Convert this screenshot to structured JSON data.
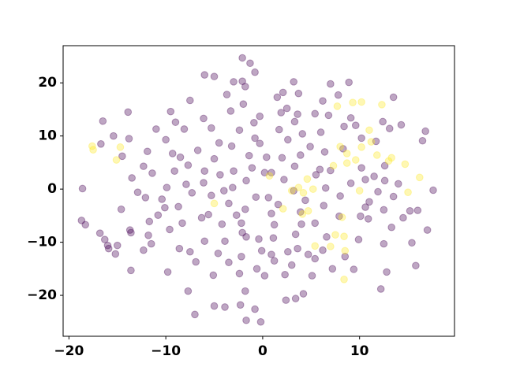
{
  "chart_data": {
    "type": "scatter",
    "xlim": [
      -20.6,
      19.8
    ],
    "ylim": [
      -27.7,
      27.0
    ],
    "xticks": [
      {
        "value": -20,
        "label": "−20"
      },
      {
        "value": -10,
        "label": "−10"
      },
      0,
      10
    ],
    "yticks": [
      {
        "value": -20,
        "label": "−20"
      },
      {
        "value": -10,
        "label": "−10"
      },
      0,
      10,
      20
    ],
    "grid": false,
    "alpha": 0.35,
    "series": [
      {
        "color": "#440154",
        "x": [
          -18.6,
          -18.7,
          -18.3,
          -16.3,
          -16.0,
          -15.9,
          -15.0,
          -15.2,
          -14.6,
          -15.4,
          -16.5,
          -16.7,
          -13.8,
          -13.9,
          -13.7,
          -13.6,
          -13.6,
          -12.3,
          -11.5,
          -11.7,
          -10.8,
          -12.3,
          -11.9,
          -11.0,
          -11.4,
          -10.0,
          -9.5,
          -9.0,
          -8.1,
          -9.3,
          -8.5,
          -7.7,
          -7.9,
          -7.3,
          -8.7,
          -8.3,
          -9.6,
          -9.8,
          -7.5,
          -7.7,
          -7.0,
          -6.9,
          -6.0,
          -5.6,
          -5.3,
          -6.1,
          -6.0,
          -5.0,
          -4.5,
          -5.3,
          -6.1,
          -6.0,
          -5.0,
          -3.7,
          -3.3,
          -2.4,
          -3.2,
          -3.0,
          -3.1,
          -3.5,
          -4.2,
          -3.9,
          -4.6,
          -5.1,
          -5.0,
          -3.9,
          -2.3,
          -1.7,
          -1.8,
          -2.4,
          -2.2,
          -1.7,
          -2.2,
          -1.8,
          -0.7,
          -1.7,
          -1.4,
          -0.8,
          -0.9,
          -2.0,
          -1.8,
          -2.1,
          -2.1,
          -1.3,
          -0.8,
          -0.3,
          -0.3,
          0.4,
          0.9,
          0.6,
          0.9,
          1.1,
          0.9,
          0.2,
          -0.6,
          -0.4,
          -0.8,
          -0.2,
          1.2,
          1.6,
          2.2,
          2.0,
          2.6,
          1.7,
          1.9,
          2.5,
          1.5,
          2.1,
          3.2,
          3.7,
          3.6,
          3.3,
          4.1,
          3.9,
          3.3,
          3.2,
          4.4,
          4.0,
          3.4,
          3.6,
          3.0,
          2.3,
          2.4,
          3.4,
          4.2,
          5.1,
          5.4,
          6.2,
          6.6,
          5.4,
          6.3,
          6.5,
          5.9,
          6.4,
          6.0,
          6.8,
          5.4,
          6.2,
          7.0,
          7.8,
          9.1,
          8.9,
          10.2,
          9.6,
          10.2,
          9.1,
          8.0,
          7.9,
          8.5,
          9.4,
          10.6,
          10.1,
          11.0,
          11.9,
          12.6,
          12.5,
          13.3,
          13.5,
          14.5,
          15.4,
          15.8,
          15.2,
          16.0,
          17.0,
          17.6,
          16.5,
          16.8,
          14.3,
          13.5,
          13.1,
          12.4,
          12.6,
          12.5,
          12.8,
          12.2,
          10.9,
          9.9,
          7.2,
          4.7,
          2.6,
          7.0,
          8.3,
          11.5,
          14.0,
          10.6,
          -12.9,
          -12.1,
          -10.4,
          -10.1,
          -9.9,
          -13.5,
          -14.5,
          -11.8,
          -8.6,
          -4.0,
          -4.4,
          -2.7,
          -0.1,
          1.2,
          -3.5,
          -2.1,
          3.9,
          -6.3,
          -6.7,
          -7.5,
          -3.0,
          0.2,
          -1.1,
          4.9,
          5.5,
          8.4,
          11.7,
          -16.8,
          -9.1
        ],
        "values": [
          0.1,
          -5.9,
          -6.7,
          -9.5,
          -10.6,
          -11.2,
          -10.6,
          -12.2,
          -3.8,
          10.0,
          12.8,
          8.5,
          9.5,
          14.5,
          -7.7,
          -8.2,
          -15.3,
          -11.5,
          -10.3,
          -6.1,
          -4.9,
          4.3,
          7.1,
          11.3,
          3.0,
          9.3,
          14.6,
          12.6,
          11.3,
          6.7,
          6.0,
          4.5,
          0.9,
          -0.7,
          -3.3,
          -6.4,
          -7.6,
          -15.6,
          -11.8,
          -19.2,
          -23.6,
          -13.7,
          -9.8,
          -4.8,
          -1.2,
          1.2,
          3.4,
          5.7,
          8.7,
          11.5,
          13.3,
          21.5,
          21.2,
          17.8,
          14.7,
          11.1,
          8.1,
          3.4,
          0.3,
          -2.7,
          -6.6,
          -9.8,
          -12.1,
          -16.2,
          -22.0,
          -22.2,
          -21.8,
          -24.7,
          -19.2,
          -15.9,
          -12.7,
          -9.0,
          -6.4,
          -3.8,
          -1.5,
          1.6,
          6.3,
          9.6,
          12.5,
          16.0,
          19.3,
          20.3,
          24.7,
          23.7,
          22.0,
          13.7,
          8.6,
          6.0,
          3.1,
          -1.6,
          -4.6,
          -9.2,
          -12.3,
          -16.3,
          -15.0,
          -9.4,
          -22.6,
          -25.0,
          -6.7,
          -2.9,
          1.8,
          5.9,
          9.3,
          11.2,
          14.4,
          15.2,
          17.3,
          18.2,
          20.2,
          18.0,
          14.1,
          12.7,
          10.4,
          6.4,
          4.3,
          -0.3,
          -2.1,
          -6.6,
          -8.5,
          -11.2,
          -14.3,
          -16.1,
          -20.9,
          -20.6,
          -19.7,
          -16.3,
          -13.1,
          -11.5,
          -9.0,
          -6.4,
          -3.1,
          0.2,
          3.7,
          7.0,
          10.7,
          13.9,
          14.2,
          16.6,
          19.8,
          17.7,
          13.4,
          20.1,
          9.6,
          12.0,
          4.0,
          1.1,
          -1.3,
          -5.1,
          -12.7,
          -15.1,
          -3.4,
          -5.1,
          -2.4,
          -0.5,
          1.6,
          -3.9,
          -7.2,
          -1.4,
          -5.4,
          -10.1,
          -14.4,
          -4.1,
          -4.0,
          -7.7,
          -0.2,
          9.1,
          10.9,
          12.1,
          17.3,
          11.4,
          12.7,
          4.4,
          -10.3,
          -15.6,
          -18.8,
          -5.6,
          -9.5,
          -15.0,
          -12.3,
          -11.8,
          3.5,
          7.6,
          2.4,
          1.0,
          1.8,
          -0.6,
          -1.6,
          -1.9,
          -3.5,
          0.3,
          2.1,
          6.2,
          -8.7,
          -11.2,
          -0.3,
          2.7,
          -4.9,
          -11.6,
          -13.5,
          -13.8,
          -8.2,
          -4.3,
          -5.4,
          7.3,
          16.7,
          20.2,
          3.1,
          4.0,
          8.0,
          2.7,
          11.8,
          9.0,
          -8.3,
          3.4
        ]
      },
      {
        "color": "#fde725",
        "x": [
          -17.6,
          -17.5,
          -14.7,
          -15.1,
          -5.0,
          0.7,
          2.1,
          3.0,
          3.7,
          4.6,
          4.2,
          5.2,
          4.1,
          4.7,
          5.4,
          7.0,
          7.5,
          8.4,
          8.5,
          8.2,
          8.4,
          7.7,
          9.3,
          10.2,
          12.3,
          8.0,
          8.7,
          9.6,
          10.2,
          11.2,
          11.8,
          13.0,
          14.7,
          16.2,
          15.0,
          10.0,
          8.7,
          7.3,
          11.0,
          13.3
        ],
        "values": [
          8.1,
          7.4,
          7.9,
          5.5,
          -2.7,
          2.5,
          -3.7,
          -0.3,
          0.3,
          1.9,
          -0.7,
          0,
          -4.7,
          -4.1,
          -10.7,
          -10.8,
          -8.6,
          -8.9,
          -11.6,
          -5.3,
          -17.0,
          15.6,
          16.3,
          16.4,
          15.9,
          8.0,
          6.7,
          5.5,
          7.9,
          8.9,
          6.4,
          5.3,
          4.7,
          2.2,
          -0.6,
          -0.3,
          4.9,
          4.4,
          11.1,
          5.9
        ]
      }
    ]
  }
}
